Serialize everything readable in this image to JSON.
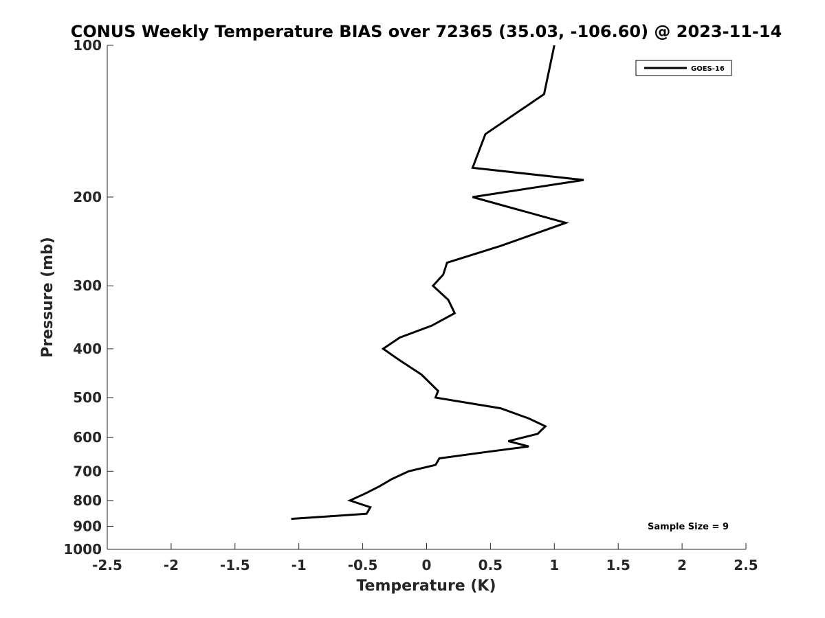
{
  "chart_data": {
    "type": "line",
    "title": "CONUS Weekly Temperature BIAS over 72365 (35.03, -106.60) @ 2023-11-14",
    "xlabel": "Temperature (K)",
    "ylabel": "Pressure (mb)",
    "xlim": [
      -2.5,
      2.5
    ],
    "ylim": [
      100,
      1000
    ],
    "y_scale": "log",
    "y_reversed": true,
    "x_ticks": [
      -2.5,
      -2,
      -1.5,
      -1,
      -0.5,
      0,
      0.5,
      1,
      1.5,
      2,
      2.5
    ],
    "x_tick_labels": [
      "-2.5",
      "-2",
      "-1.5",
      "-1",
      "-0.5",
      "0",
      "0.5",
      "1",
      "1.5",
      "2",
      "2.5"
    ],
    "y_ticks": [
      100,
      200,
      300,
      400,
      500,
      600,
      700,
      800,
      900,
      1000
    ],
    "y_tick_labels": [
      "100",
      "200",
      "300",
      "400",
      "500",
      "600",
      "700",
      "800",
      "900",
      "1000"
    ],
    "grid": false,
    "legend_position": "top-right",
    "annotation": "Sample Size = 9",
    "series": [
      {
        "name": "GOES-16",
        "color": "#000000",
        "points": [
          {
            "x": 1.0,
            "p": 100
          },
          {
            "x": 0.92,
            "p": 125
          },
          {
            "x": 0.46,
            "p": 150
          },
          {
            "x": 0.36,
            "p": 175
          },
          {
            "x": 1.23,
            "p": 185
          },
          {
            "x": 0.36,
            "p": 200
          },
          {
            "x": 1.09,
            "p": 225
          },
          {
            "x": 0.58,
            "p": 250
          },
          {
            "x": 0.16,
            "p": 270
          },
          {
            "x": 0.13,
            "p": 285
          },
          {
            "x": 0.05,
            "p": 300
          },
          {
            "x": 0.17,
            "p": 320
          },
          {
            "x": 0.22,
            "p": 340
          },
          {
            "x": 0.04,
            "p": 360
          },
          {
            "x": -0.21,
            "p": 380
          },
          {
            "x": -0.34,
            "p": 400
          },
          {
            "x": -0.22,
            "p": 420
          },
          {
            "x": -0.04,
            "p": 450
          },
          {
            "x": 0.09,
            "p": 485
          },
          {
            "x": 0.07,
            "p": 500
          },
          {
            "x": 0.58,
            "p": 525
          },
          {
            "x": 0.8,
            "p": 550
          },
          {
            "x": 0.93,
            "p": 570
          },
          {
            "x": 0.87,
            "p": 590
          },
          {
            "x": 0.64,
            "p": 610
          },
          {
            "x": 0.8,
            "p": 625
          },
          {
            "x": 0.49,
            "p": 640
          },
          {
            "x": 0.1,
            "p": 660
          },
          {
            "x": 0.07,
            "p": 680
          },
          {
            "x": -0.14,
            "p": 700
          },
          {
            "x": -0.27,
            "p": 725
          },
          {
            "x": -0.37,
            "p": 750
          },
          {
            "x": -0.48,
            "p": 775
          },
          {
            "x": -0.6,
            "p": 800
          },
          {
            "x": -0.44,
            "p": 825
          },
          {
            "x": -0.47,
            "p": 850
          },
          {
            "x": -1.06,
            "p": 870
          }
        ]
      }
    ]
  }
}
